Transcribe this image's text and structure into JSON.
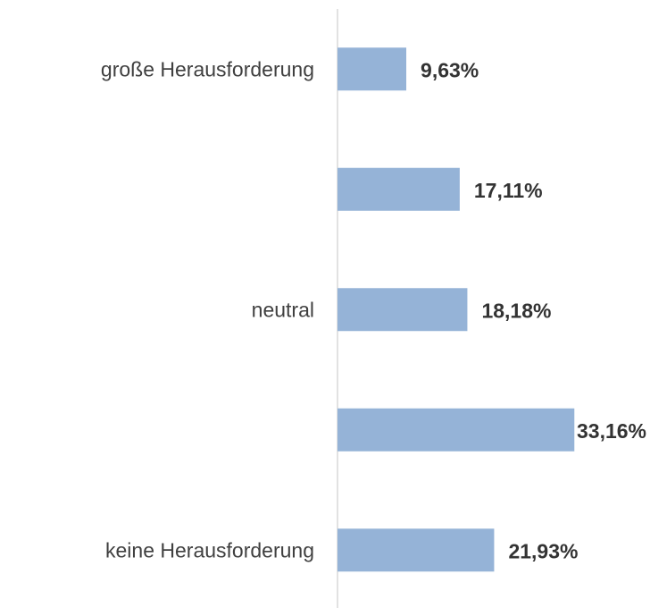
{
  "chart_data": {
    "type": "barh",
    "categories": [
      "große Herausforderung",
      null,
      "neutral",
      null,
      "keine Herausforderung"
    ],
    "values": [
      9.63,
      17.11,
      18.18,
      33.16,
      21.93
    ],
    "value_labels": [
      "9,63%",
      "17,11%",
      "18,18%",
      "33,16%",
      "21,93%"
    ],
    "color": "#95b3d7"
  }
}
